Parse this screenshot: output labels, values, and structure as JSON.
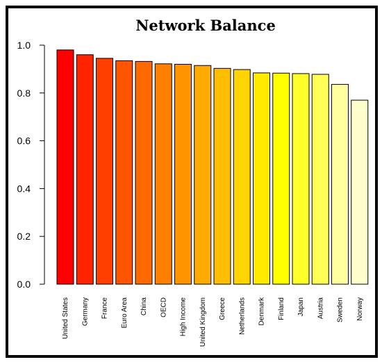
{
  "chart_data": {
    "type": "bar",
    "title": "Network Balance",
    "xlabel": "",
    "ylabel": "",
    "ylim": [
      0,
      1.0
    ],
    "yticks": [
      "0.0",
      "0.2",
      "0.4",
      "0.6",
      "0.8",
      "1.0"
    ],
    "grid": false,
    "categories": [
      "United States",
      "Germany",
      "France",
      "Euro Area",
      "China",
      "OECD",
      "High Income",
      "United Kingdom",
      "Greece",
      "Netherlands",
      "Denmark",
      "Finland",
      "Japan",
      "Austria",
      "Sweden",
      "Norway"
    ],
    "values": [
      0.98,
      0.96,
      0.945,
      0.935,
      0.932,
      0.922,
      0.92,
      0.915,
      0.903,
      0.898,
      0.884,
      0.883,
      0.881,
      0.878,
      0.836,
      0.77
    ],
    "colors": [
      "#FF0000",
      "#FF2400",
      "#FF3F00",
      "#FF5500",
      "#FF6A00",
      "#FF7F00",
      "#FF9400",
      "#FFAA00",
      "#FFBF00",
      "#FFD400",
      "#FFEA00",
      "#FFFF00",
      "#FFFF2A",
      "#FFFF55",
      "#FFFF9F",
      "#FFFFCC"
    ]
  }
}
